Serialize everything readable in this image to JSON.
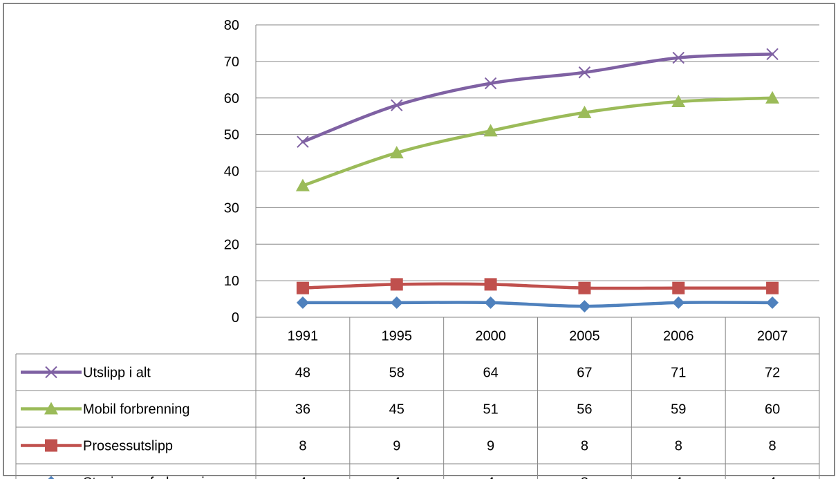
{
  "chart_data": {
    "type": "line",
    "title": "",
    "xlabel": "",
    "ylabel": "",
    "categories": [
      "1991",
      "1995",
      "2000",
      "2005",
      "2006",
      "2007"
    ],
    "ylim": [
      0,
      80
    ],
    "yticks": [
      0,
      10,
      20,
      30,
      40,
      50,
      60,
      70,
      80
    ],
    "grid": "horizontal",
    "legend": "data-table-below",
    "series": [
      {
        "name": "Utslipp i alt",
        "values": [
          48,
          58,
          64,
          67,
          71,
          72
        ],
        "color": "#7f61a3",
        "marker": "x"
      },
      {
        "name": "Mobil forbrenning",
        "values": [
          36,
          45,
          51,
          56,
          59,
          60
        ],
        "color": "#9bbb59",
        "marker": "triangle"
      },
      {
        "name": "Prosessutslipp",
        "values": [
          8,
          9,
          9,
          8,
          8,
          8
        ],
        "color": "#c0504d",
        "marker": "square"
      },
      {
        "name": "Stasjonær forbrenning",
        "values": [
          4,
          4,
          4,
          3,
          4,
          4
        ],
        "color": "#4f81bd",
        "marker": "diamond"
      }
    ]
  }
}
